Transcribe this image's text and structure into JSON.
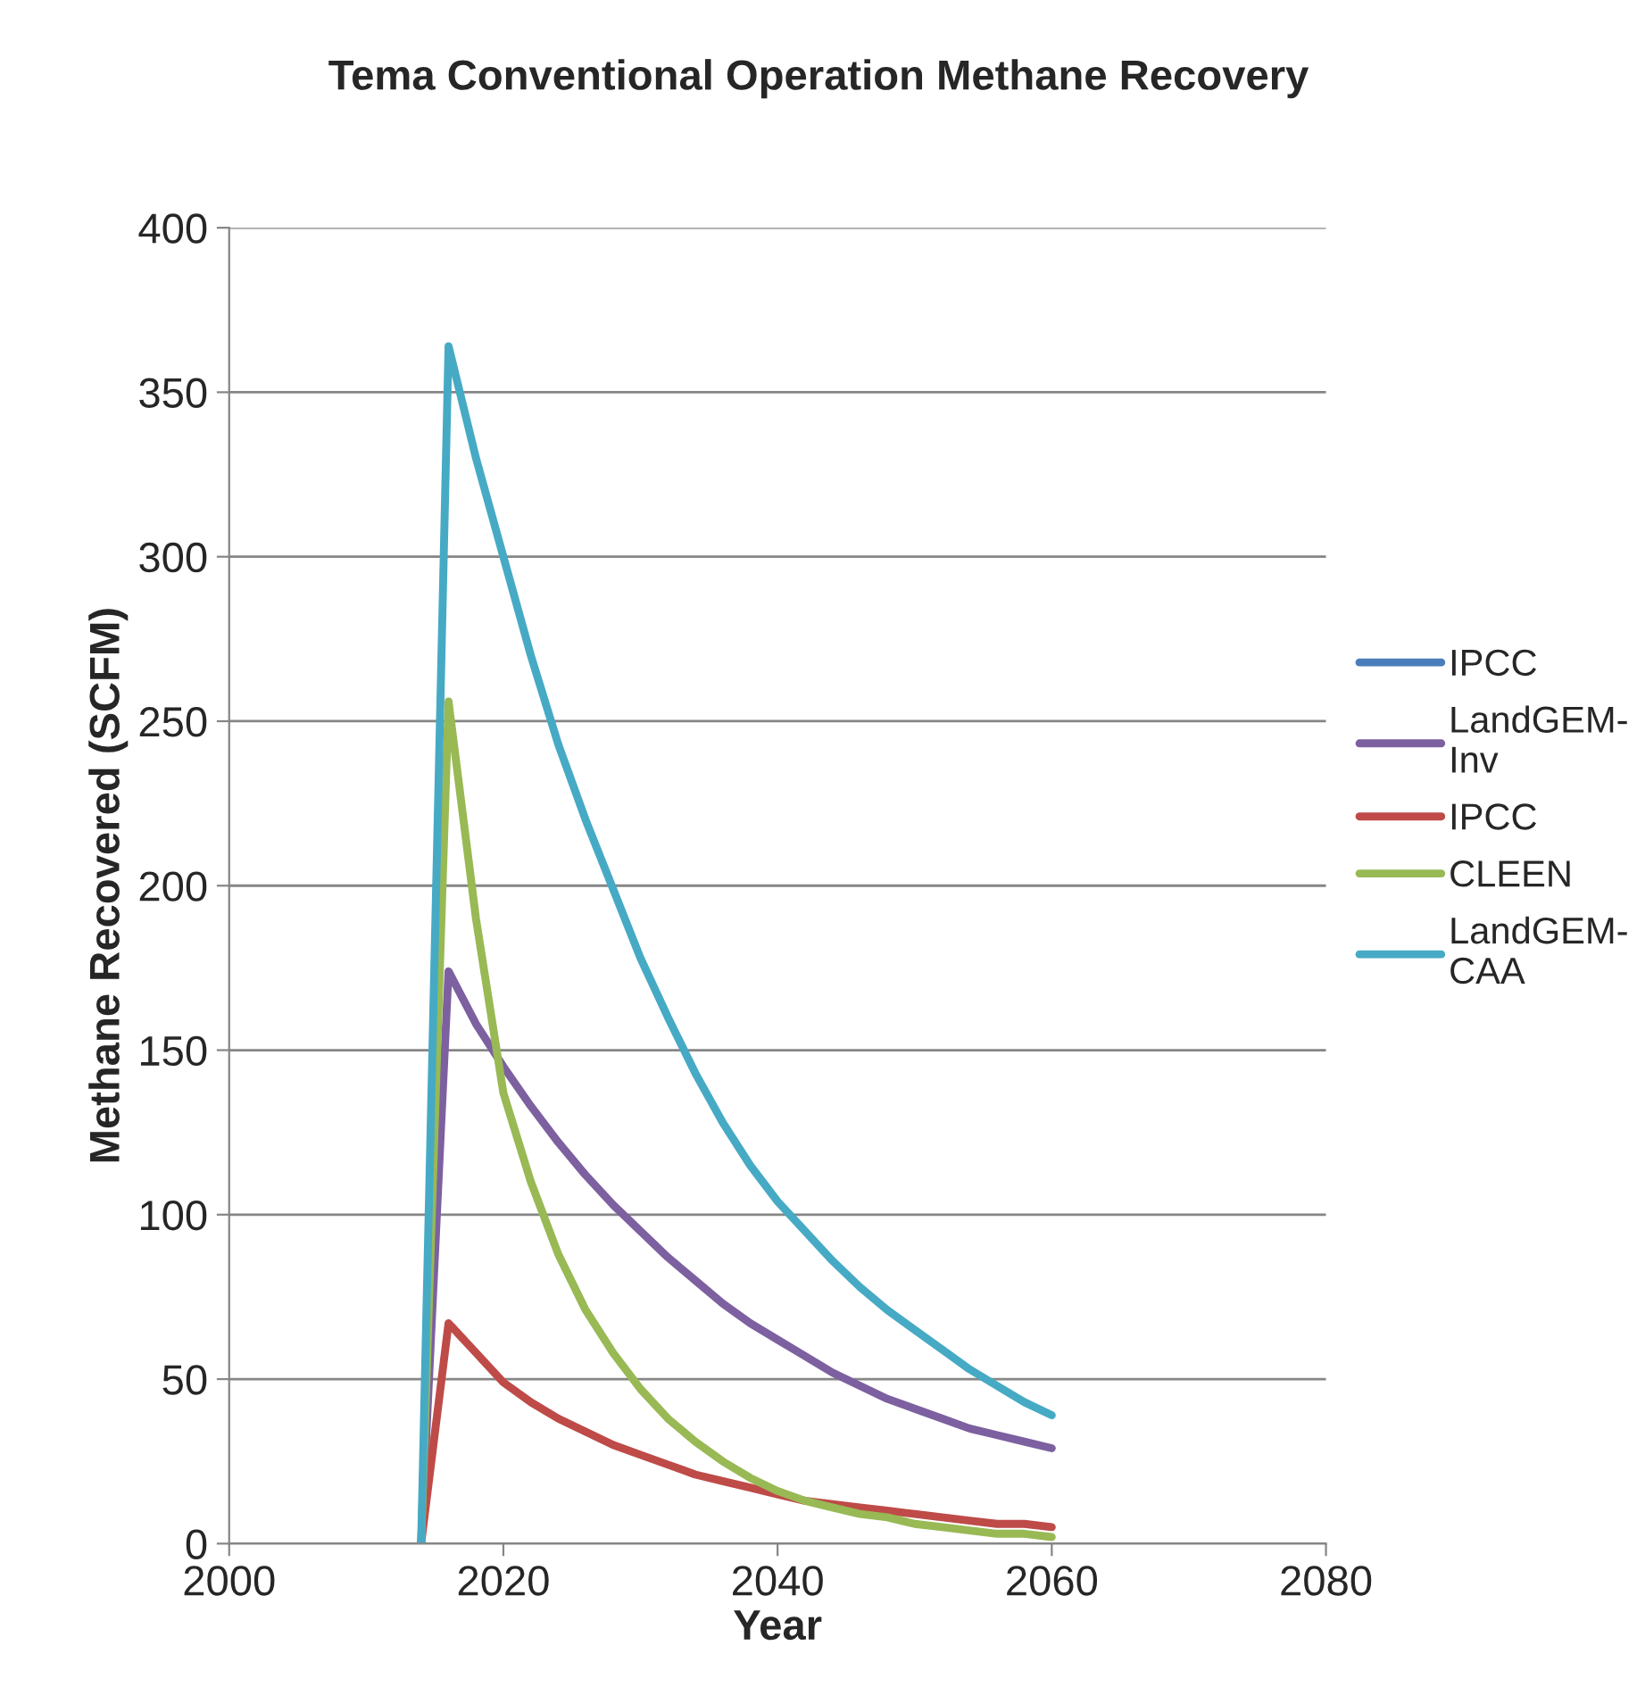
{
  "chart_data": {
    "type": "line",
    "title": "Tema Conventional Operation Methane Recovery",
    "xlabel": "Year",
    "ylabel": "Methane Recovered (SCFM)",
    "x": [
      2014,
      2016,
      2018,
      2020,
      2022,
      2024,
      2026,
      2028,
      2030,
      2032,
      2034,
      2036,
      2038,
      2040,
      2042,
      2044,
      2046,
      2048,
      2050,
      2052,
      2054,
      2056,
      2058,
      2060
    ],
    "series": [
      {
        "name": "IPCC",
        "color": "#4a7ebb",
        "values": [
          null,
          null,
          null,
          null,
          null,
          null,
          null,
          null,
          null,
          null,
          null,
          null,
          null,
          null,
          null,
          null,
          null,
          null,
          null,
          null,
          null,
          null,
          null,
          null
        ]
      },
      {
        "name": "LandGEM-Inv",
        "color": "#7d60a0",
        "values": [
          0,
          174,
          158,
          145,
          133,
          122,
          112,
          103,
          95,
          87,
          80,
          73,
          67,
          62,
          57,
          52,
          48,
          44,
          41,
          38,
          35,
          33,
          31,
          29
        ]
      },
      {
        "name": "IPCC",
        "color": "#be4b48",
        "values": [
          0,
          67,
          58,
          49,
          43,
          38,
          34,
          30,
          27,
          24,
          21,
          19,
          17,
          15,
          13,
          12,
          11,
          10,
          9,
          8,
          7,
          6,
          6,
          5
        ]
      },
      {
        "name": "CLEEN",
        "color": "#98b954",
        "values": [
          0,
          256,
          190,
          137,
          110,
          88,
          71,
          58,
          47,
          38,
          31,
          25,
          20,
          16,
          13,
          11,
          9,
          8,
          6,
          5,
          4,
          3,
          3,
          2
        ]
      },
      {
        "name": "LandGEM-CAA",
        "color": "#46aac5",
        "values": [
          0,
          364,
          330,
          300,
          270,
          243,
          220,
          199,
          178,
          160,
          143,
          128,
          115,
          104,
          95,
          86,
          78,
          71,
          65,
          59,
          53,
          48,
          43,
          39
        ]
      }
    ],
    "xlim": [
      2000,
      2080
    ],
    "xticks": [
      2000,
      2020,
      2040,
      2060,
      2080
    ],
    "ylim": [
      0,
      400
    ],
    "yticks": [
      0,
      50,
      100,
      150,
      200,
      250,
      300,
      350,
      400
    ],
    "grid": "y",
    "legend": "right",
    "marker": "none",
    "line_style": "solid"
  }
}
